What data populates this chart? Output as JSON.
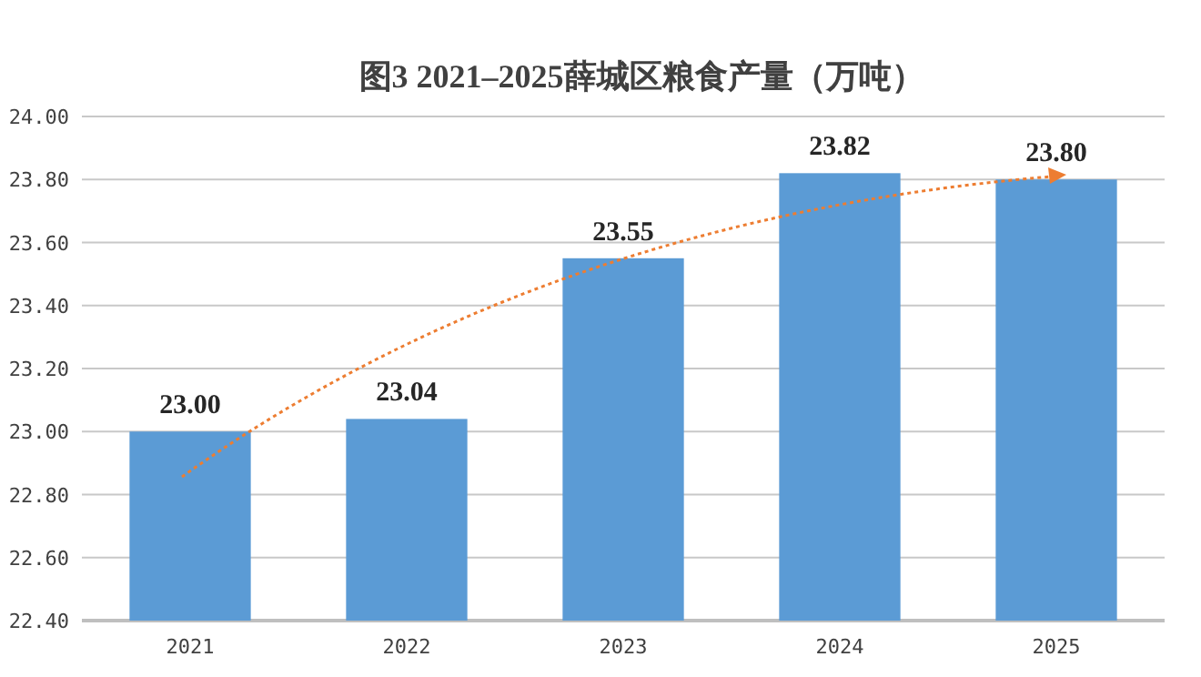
{
  "chart_data": {
    "type": "bar",
    "title": "图3  2021–2025薛城区粮食产量（万吨）",
    "categories": [
      "2021",
      "2022",
      "2023",
      "2024",
      "2025"
    ],
    "values": [
      23.0,
      23.04,
      23.55,
      23.82,
      23.8
    ],
    "value_labels": [
      "23.00",
      "23.04",
      "23.55",
      "23.82",
      "23.80"
    ],
    "color": "#5b9bd5",
    "ylim": [
      22.4,
      24.0
    ],
    "yticks": [
      {
        "value": 22.4,
        "label": "22.40"
      },
      {
        "value": 22.6,
        "label": "22.60"
      },
      {
        "value": 22.8,
        "label": "22.80"
      },
      {
        "value": 23.0,
        "label": "23.00"
      },
      {
        "value": 23.2,
        "label": "23.20"
      },
      {
        "value": 23.4,
        "label": "23.40"
      },
      {
        "value": 23.6,
        "label": "23.60"
      },
      {
        "value": 23.8,
        "label": "23.80"
      },
      {
        "value": 24.0,
        "label": "24.00"
      }
    ],
    "grid": "y"
  }
}
